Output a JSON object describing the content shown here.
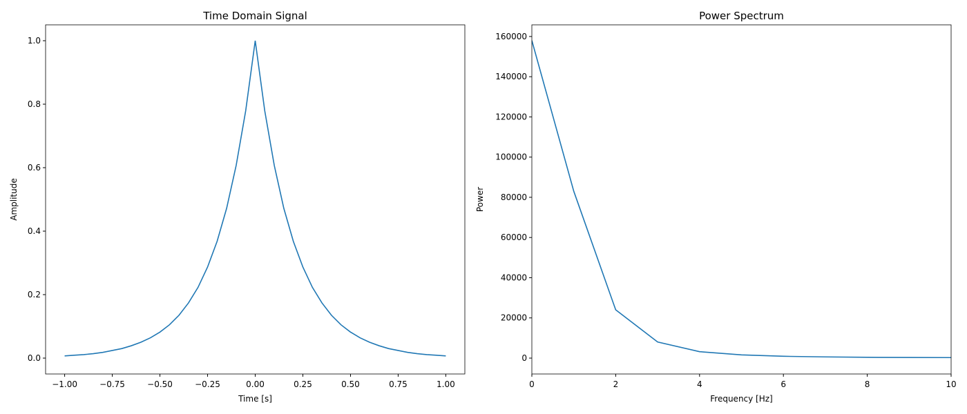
{
  "chart_data": [
    {
      "type": "line",
      "title": "Time Domain Signal",
      "x_label": "Time [s]",
      "y_label": "Amplitude",
      "x": [
        -1.0,
        -0.95,
        -0.9,
        -0.85,
        -0.8,
        -0.75,
        -0.7,
        -0.65,
        -0.6,
        -0.55,
        -0.5,
        -0.45,
        -0.4,
        -0.35,
        -0.3,
        -0.25,
        -0.2,
        -0.15,
        -0.1,
        -0.05,
        0,
        0.05,
        0.1,
        0.15,
        0.2,
        0.25,
        0.3,
        0.35,
        0.4,
        0.45,
        0.5,
        0.55,
        0.6,
        0.65,
        0.7,
        0.75,
        0.8,
        0.85,
        0.9,
        0.95,
        1.0
      ],
      "series": [
        {
          "color": "#1f77b4",
          "values": [
            0.007,
            0.009,
            0.011,
            0.014,
            0.018,
            0.024,
            0.03,
            0.039,
            0.05,
            0.064,
            0.082,
            0.105,
            0.135,
            0.174,
            0.223,
            0.287,
            0.368,
            0.472,
            0.607,
            0.779,
            1.0,
            0.779,
            0.607,
            0.472,
            0.368,
            0.287,
            0.223,
            0.174,
            0.135,
            0.105,
            0.082,
            0.064,
            0.05,
            0.039,
            0.03,
            0.024,
            0.018,
            0.014,
            0.011,
            0.009,
            0.007
          ]
        }
      ],
      "xlim": [
        -1.1,
        1.1
      ],
      "ylim": [
        -0.05,
        1.05
      ],
      "xticks": [
        {
          "value": -1,
          "label": "−1.00"
        },
        {
          "value": -0.75,
          "label": "−0.75"
        },
        {
          "value": -0.5,
          "label": "−0.50"
        },
        {
          "value": -0.25,
          "label": "−0.25"
        },
        {
          "value": 0,
          "label": "0.00"
        },
        {
          "value": 0.25,
          "label": "0.25"
        },
        {
          "value": 0.5,
          "label": "0.50"
        },
        {
          "value": 0.75,
          "label": "0.75"
        },
        {
          "value": 1,
          "label": "1.00"
        }
      ],
      "yticks": [
        {
          "value": 0,
          "label": "0.0"
        },
        {
          "value": 0.2,
          "label": "0.2"
        },
        {
          "value": 0.4,
          "label": "0.4"
        },
        {
          "value": 0.6,
          "label": "0.6"
        },
        {
          "value": 0.8,
          "label": "0.8"
        },
        {
          "value": 1,
          "label": "1.0"
        }
      ]
    },
    {
      "type": "line",
      "title": "Power Spectrum",
      "x_label": "Frequency [Hz]",
      "y_label": "Power",
      "x": [
        0,
        1,
        2,
        3,
        4,
        5,
        6,
        7,
        8,
        9,
        10
      ],
      "series": [
        {
          "color": "#1f77b4",
          "values": [
            158000,
            83000,
            24000,
            8000,
            3200,
            1600,
            900,
            600,
            400,
            300,
            250
          ]
        }
      ],
      "xlim": [
        0,
        10
      ],
      "ylim": [
        -7900,
        165800
      ],
      "xticks": [
        0,
        2,
        4,
        6,
        8,
        10
      ],
      "yticks": [
        0,
        20000,
        40000,
        60000,
        80000,
        100000,
        120000,
        140000,
        160000
      ]
    }
  ]
}
